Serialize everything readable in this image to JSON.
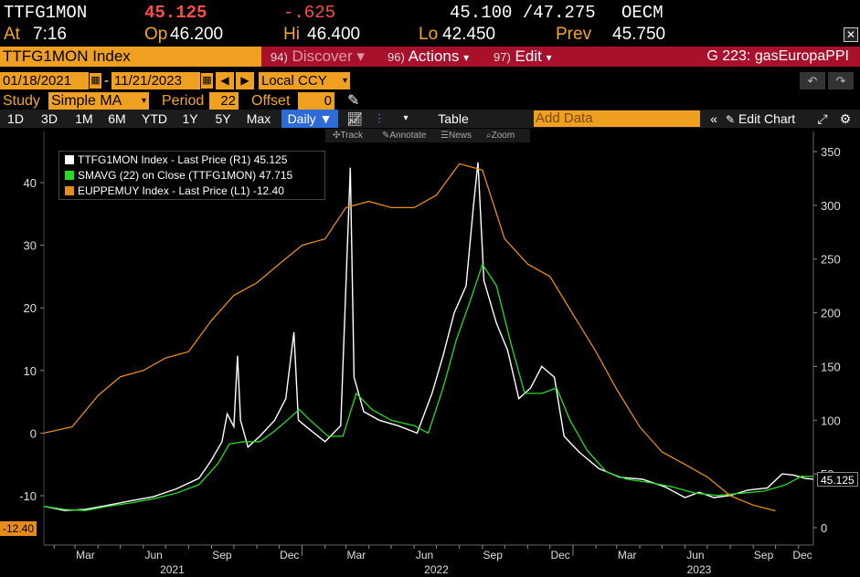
{
  "quote": {
    "ticker": "TTFG1MON",
    "last": "45.125",
    "change": "-.625",
    "bid_ask": "45.100 /47.275",
    "exchange": "OECM",
    "time_label": "At",
    "time": "7:16",
    "open_label": "Op",
    "open": "46.200",
    "high_label": "Hi",
    "high": "46.400",
    "low_label": "Lo",
    "low": "42.450",
    "prev_label": "Prev",
    "prev": "45.750"
  },
  "cmdbar": {
    "security": "TTFG1MON Index",
    "discover_num": "94)",
    "discover": "Discover",
    "actions_num": "96)",
    "actions": "Actions",
    "edit_num": "97)",
    "edit": "Edit",
    "function": "G 223: gasEuropaPPI",
    "close_icon": "close-icon"
  },
  "range": {
    "start": "01/18/2021",
    "separator": "-",
    "end": "11/21/2023",
    "currency": "Local CCY",
    "undo_icon": "undo-icon",
    "redo_icon": "redo-icon"
  },
  "study": {
    "label": "Study",
    "value": "Simple MA",
    "period_label": "Period",
    "period": "22",
    "offset_label": "Offset",
    "offset": "0",
    "pen_icon": "pen-icon"
  },
  "tabs": {
    "items": [
      "1D",
      "3D",
      "1M",
      "6M",
      "YTD",
      "1Y",
      "5Y",
      "Max"
    ],
    "frequency": "Daily",
    "table": "Table",
    "add_data_placeholder": "Add Data",
    "edit_chart": "Edit Chart"
  },
  "toolstrip": {
    "track": "Track",
    "annotate": "Annotate",
    "news": "News",
    "zoom": "Zoom"
  },
  "legend": [
    {
      "text": "TTFG1MON Index - Last Price (R1) 45.125",
      "color": "#ffffff"
    },
    {
      "text": "SMAVG (22)  on Close (TTFG1MON) 47.715",
      "color": "#22dd22"
    },
    {
      "text": "EUPPEMUY Index - Last Price (L1) -12.40",
      "color": "#e58c1a"
    }
  ],
  "chart_data": {
    "type": "line",
    "left_axis": {
      "ticks": [
        -10,
        0,
        10,
        20,
        30,
        40
      ],
      "range": [
        -18,
        48
      ]
    },
    "right_axis": {
      "ticks": [
        0,
        50,
        100,
        150,
        200,
        250,
        300,
        350
      ],
      "range": [
        -5,
        360
      ]
    },
    "x_axis": {
      "months": [
        "Mar",
        "Jun",
        "Sep",
        "Dec",
        "Mar",
        "Jun",
        "Sep",
        "Dec",
        "Mar",
        "Jun",
        "Sep",
        "Dec"
      ],
      "years": [
        "2021",
        "2022",
        "2023"
      ],
      "range": [
        "2021-01-18",
        "2023-11-21"
      ]
    },
    "last_labels": {
      "left": "-12.40",
      "right": "45.125"
    },
    "series": [
      {
        "name": "TTFG1MON Index - Last Price (R1)",
        "axis": "right",
        "color": "#ffffff",
        "points": [
          [
            "2021-01-18",
            20
          ],
          [
            "2021-02-15",
            16
          ],
          [
            "2021-03-15",
            17
          ],
          [
            "2021-04-15",
            21
          ],
          [
            "2021-05-15",
            25
          ],
          [
            "2021-06-15",
            29
          ],
          [
            "2021-07-15",
            36
          ],
          [
            "2021-08-15",
            46
          ],
          [
            "2021-08-31",
            62
          ],
          [
            "2021-09-15",
            80
          ],
          [
            "2021-09-22",
            106
          ],
          [
            "2021-10-01",
            94
          ],
          [
            "2021-10-06",
            160
          ],
          [
            "2021-10-10",
            100
          ],
          [
            "2021-10-20",
            75
          ],
          [
            "2021-11-05",
            85
          ],
          [
            "2021-11-25",
            100
          ],
          [
            "2021-12-10",
            120
          ],
          [
            "2021-12-21",
            182
          ],
          [
            "2021-12-27",
            100
          ],
          [
            "2022-01-10",
            92
          ],
          [
            "2022-02-01",
            80
          ],
          [
            "2022-02-22",
            95
          ],
          [
            "2022-03-07",
            335
          ],
          [
            "2022-03-12",
            140
          ],
          [
            "2022-03-25",
            108
          ],
          [
            "2022-04-15",
            100
          ],
          [
            "2022-05-10",
            95
          ],
          [
            "2022-06-05",
            88
          ],
          [
            "2022-06-25",
            125
          ],
          [
            "2022-07-10",
            160
          ],
          [
            "2022-07-25",
            200
          ],
          [
            "2022-08-10",
            225
          ],
          [
            "2022-08-20",
            300
          ],
          [
            "2022-08-26",
            340
          ],
          [
            "2022-09-03",
            230
          ],
          [
            "2022-09-20",
            190
          ],
          [
            "2022-10-05",
            165
          ],
          [
            "2022-10-20",
            120
          ],
          [
            "2022-11-05",
            130
          ],
          [
            "2022-11-20",
            150
          ],
          [
            "2022-12-07",
            140
          ],
          [
            "2022-12-20",
            85
          ],
          [
            "2023-01-10",
            70
          ],
          [
            "2023-02-05",
            55
          ],
          [
            "2023-03-05",
            47
          ],
          [
            "2023-04-05",
            45
          ],
          [
            "2023-05-05",
            38
          ],
          [
            "2023-06-01",
            28
          ],
          [
            "2023-06-20",
            33
          ],
          [
            "2023-07-10",
            28
          ],
          [
            "2023-08-01",
            30
          ],
          [
            "2023-08-25",
            35
          ],
          [
            "2023-09-20",
            37
          ],
          [
            "2023-10-10",
            50
          ],
          [
            "2023-10-25",
            49
          ],
          [
            "2023-11-10",
            46
          ],
          [
            "2023-11-21",
            45.125
          ]
        ]
      },
      {
        "name": "SMAVG (22) on Close (TTFG1MON)",
        "axis": "right",
        "color": "#22dd22",
        "points": [
          [
            "2021-01-18",
            20
          ],
          [
            "2021-02-15",
            17
          ],
          [
            "2021-03-15",
            16
          ],
          [
            "2021-04-15",
            20
          ],
          [
            "2021-05-15",
            23
          ],
          [
            "2021-06-15",
            27
          ],
          [
            "2021-07-15",
            32
          ],
          [
            "2021-08-15",
            40
          ],
          [
            "2021-09-10",
            60
          ],
          [
            "2021-09-25",
            78
          ],
          [
            "2021-10-15",
            80
          ],
          [
            "2021-11-05",
            80
          ],
          [
            "2021-11-25",
            90
          ],
          [
            "2021-12-12",
            100
          ],
          [
            "2021-12-28",
            110
          ],
          [
            "2022-01-12",
            100
          ],
          [
            "2022-02-05",
            85
          ],
          [
            "2022-02-25",
            85
          ],
          [
            "2022-03-15",
            125
          ],
          [
            "2022-04-05",
            110
          ],
          [
            "2022-05-01",
            100
          ],
          [
            "2022-06-01",
            95
          ],
          [
            "2022-06-20",
            88
          ],
          [
            "2022-07-10",
            130
          ],
          [
            "2022-07-28",
            175
          ],
          [
            "2022-08-15",
            210
          ],
          [
            "2022-09-01",
            245
          ],
          [
            "2022-09-20",
            225
          ],
          [
            "2022-10-10",
            170
          ],
          [
            "2022-10-28",
            125
          ],
          [
            "2022-11-20",
            125
          ],
          [
            "2022-12-10",
            130
          ],
          [
            "2022-12-28",
            100
          ],
          [
            "2023-01-20",
            72
          ],
          [
            "2023-02-15",
            52
          ],
          [
            "2023-03-15",
            45
          ],
          [
            "2023-04-15",
            42
          ],
          [
            "2023-05-15",
            38
          ],
          [
            "2023-06-15",
            32
          ],
          [
            "2023-07-15",
            30
          ],
          [
            "2023-08-15",
            32
          ],
          [
            "2023-09-15",
            34
          ],
          [
            "2023-10-15",
            40
          ],
          [
            "2023-11-05",
            48
          ],
          [
            "2023-11-21",
            47.715
          ]
        ]
      },
      {
        "name": "EUPPEMUY Index - Last Price (L1)",
        "axis": "left",
        "color": "#e58c1a",
        "points": [
          [
            "2021-01-18",
            0
          ],
          [
            "2021-02-25",
            1
          ],
          [
            "2021-04-01",
            6
          ],
          [
            "2021-05-01",
            9
          ],
          [
            "2021-06-01",
            10
          ],
          [
            "2021-07-01",
            12
          ],
          [
            "2021-08-01",
            13
          ],
          [
            "2021-09-01",
            18
          ],
          [
            "2021-10-01",
            22
          ],
          [
            "2021-11-01",
            24
          ],
          [
            "2021-12-01",
            27
          ],
          [
            "2022-01-01",
            30
          ],
          [
            "2022-02-01",
            31
          ],
          [
            "2022-03-01",
            36
          ],
          [
            "2022-04-01",
            37
          ],
          [
            "2022-05-01",
            36
          ],
          [
            "2022-06-01",
            36
          ],
          [
            "2022-07-01",
            38
          ],
          [
            "2022-08-01",
            43
          ],
          [
            "2022-09-01",
            42
          ],
          [
            "2022-10-01",
            31
          ],
          [
            "2022-11-01",
            27
          ],
          [
            "2022-12-01",
            25
          ],
          [
            "2023-01-01",
            19
          ],
          [
            "2023-02-01",
            13
          ],
          [
            "2023-03-01",
            7
          ],
          [
            "2023-04-01",
            1
          ],
          [
            "2023-05-01",
            -3
          ],
          [
            "2023-06-01",
            -5
          ],
          [
            "2023-07-01",
            -7
          ],
          [
            "2023-08-01",
            -10
          ],
          [
            "2023-09-01",
            -11.5
          ],
          [
            "2023-10-01",
            -12.4
          ]
        ]
      }
    ]
  }
}
